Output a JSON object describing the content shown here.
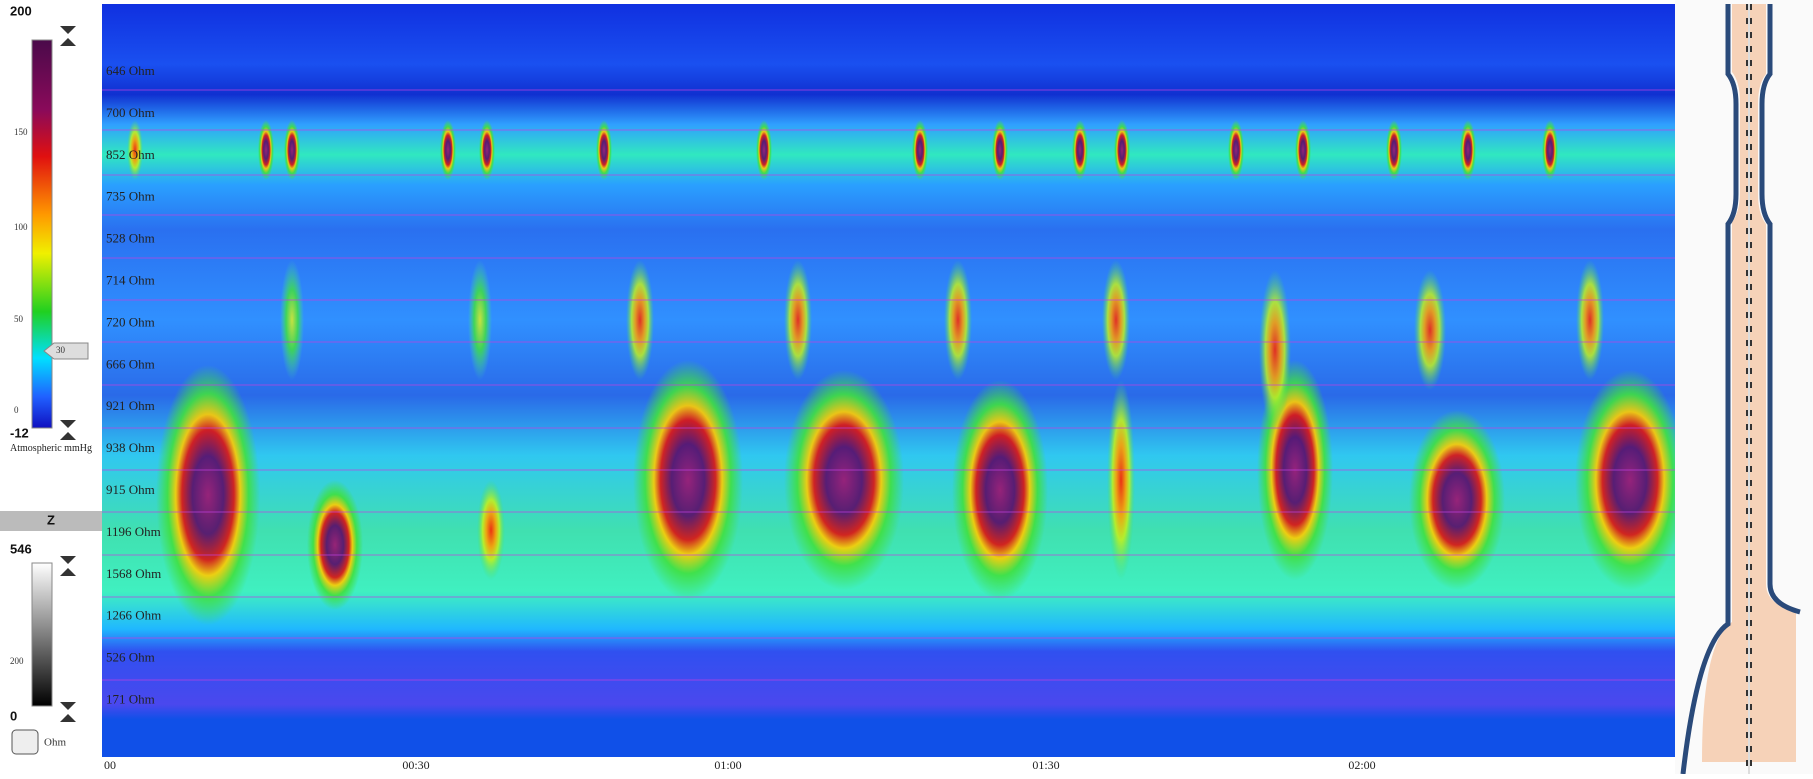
{
  "pressure_scale": {
    "max": "200",
    "min": "-12",
    "ticks": [
      "150",
      "100",
      "50",
      "0"
    ],
    "marker": "30",
    "unit": "Atmospheric mmHg"
  },
  "impedance_scale": {
    "header": "Z",
    "max": "546",
    "min": "0",
    "ticks": [
      "200"
    ],
    "unit": "Ohm"
  },
  "channels": [
    "646 Ohm",
    "700 Ohm",
    "852 Ohm",
    "735 Ohm",
    "528 Ohm",
    "714 Ohm",
    "720 Ohm",
    "666 Ohm",
    "921 Ohm",
    "938 Ohm",
    "915 Ohm",
    "1196 Ohm",
    "1568 Ohm",
    "1266 Ohm",
    "526 Ohm",
    "171 Ohm"
  ],
  "time_axis": [
    "00",
    "00:30",
    "01:00",
    "01:30",
    "02:00"
  ]
}
